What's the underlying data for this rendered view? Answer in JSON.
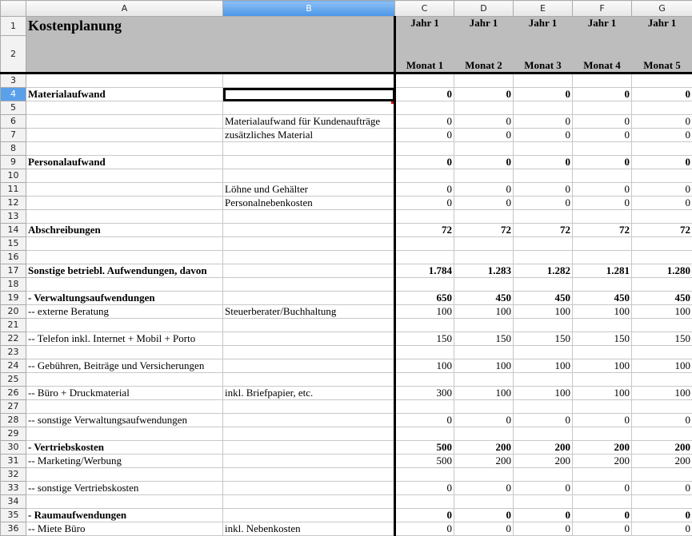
{
  "columns": [
    "A",
    "B",
    "C",
    "D",
    "E",
    "F",
    "G"
  ],
  "selected_cell": "B4",
  "header": {
    "title": "Kostenplanung",
    "years": [
      "Jahr 1",
      "Jahr 1",
      "Jahr 1",
      "Jahr 1",
      "Jahr 1"
    ],
    "months": [
      "Monat 1",
      "Monat 2",
      "Monat 3",
      "Monat 4",
      "Monat 5"
    ]
  },
  "rows": [
    {
      "n": 3,
      "a": "",
      "b": "",
      "v": []
    },
    {
      "n": 4,
      "a": "Materialaufwand",
      "b": "",
      "v": [
        "0",
        "0",
        "0",
        "0",
        "0"
      ],
      "bold": true
    },
    {
      "n": 5,
      "a": "",
      "b": "",
      "v": []
    },
    {
      "n": 6,
      "a": "",
      "b": "Materialaufwand für Kundenaufträge",
      "v": [
        "0",
        "0",
        "0",
        "0",
        "0"
      ]
    },
    {
      "n": 7,
      "a": "",
      "b": "zusätzliches Material",
      "v": [
        "0",
        "0",
        "0",
        "0",
        "0"
      ]
    },
    {
      "n": 8,
      "a": "",
      "b": "",
      "v": []
    },
    {
      "n": 9,
      "a": "Personalaufwand",
      "b": "",
      "v": [
        "0",
        "0",
        "0",
        "0",
        "0"
      ],
      "bold": true
    },
    {
      "n": 10,
      "a": "",
      "b": "",
      "v": []
    },
    {
      "n": 11,
      "a": "",
      "b": "Löhne und Gehälter",
      "v": [
        "0",
        "0",
        "0",
        "0",
        "0"
      ]
    },
    {
      "n": 12,
      "a": "",
      "b": "Personalnebenkosten",
      "v": [
        "0",
        "0",
        "0",
        "0",
        "0"
      ]
    },
    {
      "n": 13,
      "a": "",
      "b": "",
      "v": []
    },
    {
      "n": 14,
      "a": "Abschreibungen",
      "b": "",
      "v": [
        "72",
        "72",
        "72",
        "72",
        "72"
      ],
      "bold": true
    },
    {
      "n": 15,
      "a": "",
      "b": "",
      "v": []
    },
    {
      "n": 16,
      "a": "",
      "b": "",
      "v": []
    },
    {
      "n": 17,
      "a": "Sonstige betriebl. Aufwendungen, davon",
      "b": "",
      "v": [
        "1.784",
        "1.283",
        "1.282",
        "1.281",
        "1.280"
      ],
      "bold": true
    },
    {
      "n": 18,
      "a": "",
      "b": "",
      "v": []
    },
    {
      "n": 19,
      "a": "- Verwaltungsaufwendungen",
      "b": "",
      "v": [
        "650",
        "450",
        "450",
        "450",
        "450"
      ],
      "bold": true
    },
    {
      "n": 20,
      "a": "-- externe Beratung",
      "b": "Steuerberater/Buchhaltung",
      "v": [
        "100",
        "100",
        "100",
        "100",
        "100"
      ]
    },
    {
      "n": 21,
      "a": "",
      "b": "",
      "v": []
    },
    {
      "n": 22,
      "a": "-- Telefon inkl. Internet + Mobil + Porto",
      "b": "",
      "v": [
        "150",
        "150",
        "150",
        "150",
        "150"
      ]
    },
    {
      "n": 23,
      "a": "",
      "b": "",
      "v": []
    },
    {
      "n": 24,
      "a": "-- Gebühren, Beiträge und Versicherungen",
      "b": "",
      "v": [
        "100",
        "100",
        "100",
        "100",
        "100"
      ]
    },
    {
      "n": 25,
      "a": "",
      "b": "",
      "v": []
    },
    {
      "n": 26,
      "a": "-- Büro + Druckmaterial",
      "b": "inkl. Briefpapier, etc.",
      "v": [
        "300",
        "100",
        "100",
        "100",
        "100"
      ]
    },
    {
      "n": 27,
      "a": "",
      "b": "",
      "v": []
    },
    {
      "n": 28,
      "a": "-- sonstige Verwaltungsaufwendungen",
      "b": "",
      "v": [
        "0",
        "0",
        "0",
        "0",
        "0"
      ]
    },
    {
      "n": 29,
      "a": "",
      "b": "",
      "v": []
    },
    {
      "n": 30,
      "a": "- Vertriebskosten",
      "b": "",
      "v": [
        "500",
        "200",
        "200",
        "200",
        "200"
      ],
      "bold": true
    },
    {
      "n": 31,
      "a": "-- Marketing/Werbung",
      "b": "",
      "v": [
        "500",
        "200",
        "200",
        "200",
        "200"
      ]
    },
    {
      "n": 32,
      "a": "",
      "b": "",
      "v": []
    },
    {
      "n": 33,
      "a": "-- sonstige Vertriebskosten",
      "b": "",
      "v": [
        "0",
        "0",
        "0",
        "0",
        "0"
      ]
    },
    {
      "n": 34,
      "a": "",
      "b": "",
      "v": []
    },
    {
      "n": 35,
      "a": "- Raumaufwendungen",
      "b": "",
      "v": [
        "0",
        "0",
        "0",
        "0",
        "0"
      ],
      "bold": true
    },
    {
      "n": 36,
      "a": "-- Miete Büro",
      "b": "inkl. Nebenkosten",
      "v": [
        "0",
        "0",
        "0",
        "0",
        "0"
      ]
    }
  ]
}
